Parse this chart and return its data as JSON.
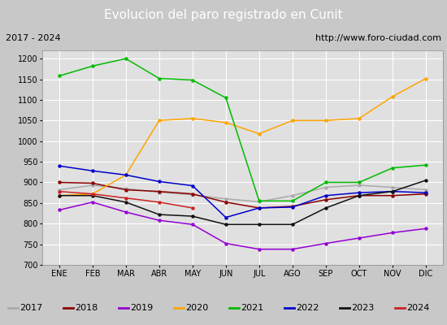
{
  "title": "Evolucion del paro registrado en Cunit",
  "subtitle_left": "2017 - 2024",
  "subtitle_right": "http://www.foro-ciudad.com",
  "ylim": [
    700,
    1220
  ],
  "yticks": [
    700,
    750,
    800,
    850,
    900,
    950,
    1000,
    1050,
    1100,
    1150,
    1200
  ],
  "months": [
    "ENE",
    "FEB",
    "MAR",
    "ABR",
    "MAY",
    "JUN",
    "JUL",
    "AGO",
    "SEP",
    "OCT",
    "NOV",
    "DIC"
  ],
  "series": {
    "2017": {
      "color": "#aaaaaa",
      "data": [
        882,
        893,
        885,
        876,
        870,
        860,
        853,
        868,
        888,
        893,
        888,
        882
      ]
    },
    "2018": {
      "color": "#8b0000",
      "data": [
        900,
        898,
        882,
        878,
        872,
        852,
        838,
        842,
        858,
        868,
        868,
        872
      ]
    },
    "2019": {
      "color": "#9400d3",
      "data": [
        833,
        852,
        828,
        808,
        798,
        752,
        738,
        738,
        752,
        765,
        778,
        788
      ]
    },
    "2020": {
      "color": "#ffa500",
      "data": [
        868,
        872,
        918,
        1050,
        1055,
        1045,
        1018,
        1050,
        1050,
        1055,
        1108,
        1152
      ]
    },
    "2021": {
      "color": "#00bb00",
      "data": [
        1158,
        1182,
        1200,
        1152,
        1148,
        1105,
        855,
        855,
        900,
        900,
        935,
        942
      ]
    },
    "2022": {
      "color": "#0000cc",
      "data": [
        940,
        928,
        918,
        902,
        892,
        815,
        838,
        840,
        868,
        875,
        878,
        875
      ]
    },
    "2023": {
      "color": "#111111",
      "data": [
        868,
        868,
        852,
        822,
        818,
        798,
        798,
        798,
        838,
        868,
        878,
        905
      ]
    },
    "2024": {
      "color": "#cc2222",
      "data": [
        878,
        872,
        862,
        852,
        838,
        null,
        null,
        null,
        null,
        null,
        null,
        null
      ]
    }
  },
  "fig_bg": "#c8c8c8",
  "plot_bg": "#e0e0e0",
  "title_bg": "#4472c4",
  "title_color": "#ffffff",
  "subtitle_bg": "#c8c8c8",
  "grid_color": "#ffffff",
  "legend_bg": "#f0f0f0",
  "title_fontsize": 11,
  "subtitle_fontsize": 8,
  "tick_fontsize": 7,
  "legend_fontsize": 8
}
